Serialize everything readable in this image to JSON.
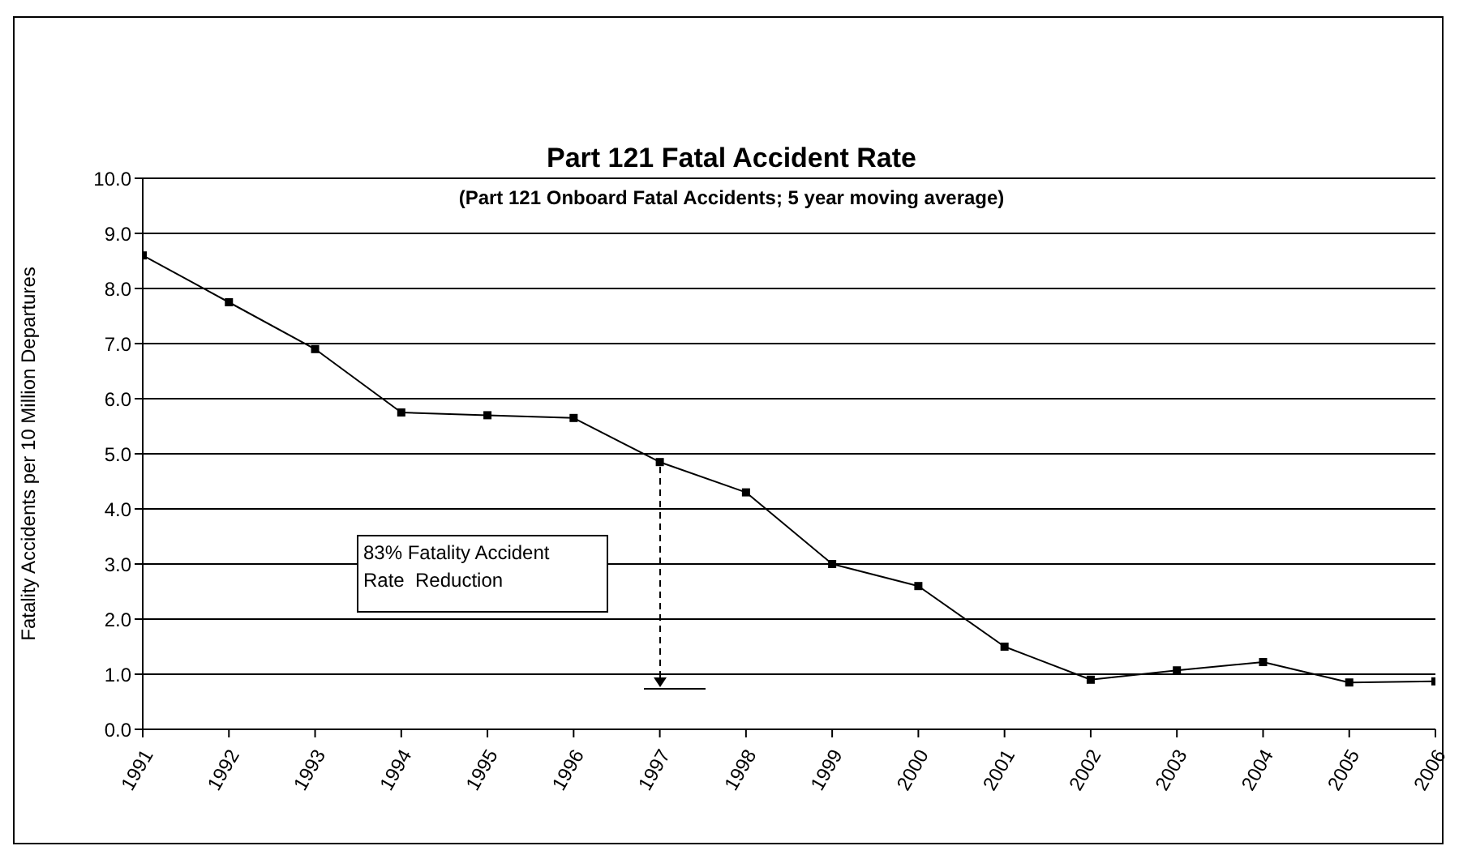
{
  "chart_data": {
    "type": "line",
    "title": "Part 121 Fatal Accident Rate",
    "subtitle": "(Part 121 Onboard Fatal Accidents; 5 year moving average)",
    "ylabel": "Fatality Accidents per 10 Million Departures",
    "x": [
      1991,
      1992,
      1993,
      1994,
      1995,
      1996,
      1997,
      1998,
      1999,
      2000,
      2001,
      2002,
      2003,
      2004,
      2005,
      2006
    ],
    "series": [
      {
        "color": "#000000",
        "values": [
          8.6,
          7.75,
          6.9,
          5.75,
          5.7,
          5.65,
          4.85,
          4.3,
          3.0,
          2.6,
          1.5,
          0.9,
          1.07,
          1.22,
          0.85,
          0.87
        ]
      }
    ],
    "xlim": [
      1991,
      2006
    ],
    "xticks": [
      1991,
      1992,
      1993,
      1994,
      1995,
      1996,
      1997,
      1998,
      1999,
      2000,
      2001,
      2002,
      2003,
      2004,
      2005,
      2006
    ],
    "ylim": [
      0,
      10
    ],
    "yticks": [
      {
        "value": 0,
        "label": "0.0"
      },
      {
        "value": 1,
        "label": "1.0"
      },
      {
        "value": 2,
        "label": "2.0"
      },
      {
        "value": 3,
        "label": "3.0"
      },
      {
        "value": 4,
        "label": "4.0"
      },
      {
        "value": 5,
        "label": "5.0"
      },
      {
        "value": 6,
        "label": "6.0"
      },
      {
        "value": 7,
        "label": "7.0"
      },
      {
        "value": 8,
        "label": "8.0"
      },
      {
        "value": 9,
        "label": "9.0"
      },
      {
        "value": 10,
        "label": "10.0"
      }
    ],
    "grid": "y",
    "marker": "square",
    "line_style": "solid",
    "annotations": [
      "83% Fatality Accident Rate  Reduction"
    ]
  }
}
